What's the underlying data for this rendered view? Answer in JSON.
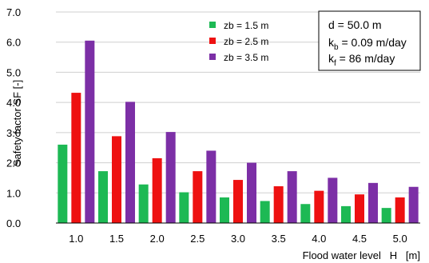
{
  "chart_data": {
    "type": "bar",
    "categories": [
      "1.0",
      "1.5",
      "2.0",
      "2.5",
      "3.0",
      "3.5",
      "4.0",
      "4.5",
      "5.0"
    ],
    "series": [
      {
        "name": "zb = 1.5 m",
        "color": "#1db954",
        "values": [
          2.6,
          1.72,
          1.28,
          1.02,
          0.85,
          0.73,
          0.63,
          0.56,
          0.5
        ]
      },
      {
        "name": "zb = 2.5 m",
        "color": "#ee1111",
        "values": [
          4.32,
          2.88,
          2.15,
          1.72,
          1.43,
          1.22,
          1.07,
          0.95,
          0.85
        ]
      },
      {
        "name": "zb = 3.5 m",
        "color": "#7c2fa6",
        "values": [
          6.05,
          4.02,
          3.02,
          2.4,
          2.0,
          1.72,
          1.5,
          1.33,
          1.2
        ]
      }
    ],
    "ylim": [
      0,
      7
    ],
    "yticks": [
      "0.0",
      "1.0",
      "2.0",
      "3.0",
      "4.0",
      "5.0",
      "6.0",
      "7.0"
    ],
    "xlabel": "Flood water level   H   [m]",
    "ylabel": "Safety factor  SF   [-]",
    "grid": true,
    "legend_position": "top-center",
    "info_box": {
      "line1": "d = 50.0 m",
      "line2_main": "k",
      "line2_sub": "b",
      "line2_rest": " = 0.09 m/day",
      "line3_main": "k",
      "line3_sub": "f",
      "line3_rest": " = 86 m/day"
    }
  }
}
